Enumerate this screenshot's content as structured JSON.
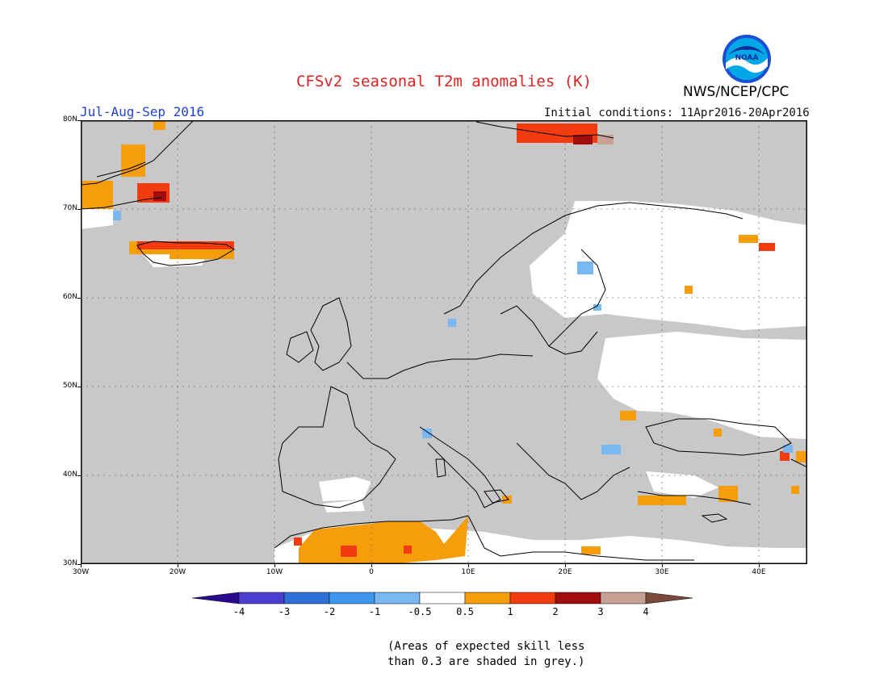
{
  "title": "CFSv2 seasonal T2m anomalies (K)",
  "season": "Jul-Aug-Sep 2016",
  "initial_conditions": "Initial conditions: 11Apr2016-20Apr2016",
  "agency": "NWS/NCEP/CPC",
  "logo_text": "NOAA",
  "colors": {
    "title": "#dd2222",
    "season": "#2244cc",
    "ocean_grey": "#c8c8c8",
    "coast": "#000000"
  },
  "map": {
    "lon_range": [
      -30,
      45
    ],
    "lat_range": [
      30,
      80
    ],
    "lat_ticks": [
      "30N",
      "40N",
      "50N",
      "60N",
      "70N",
      "80N"
    ],
    "lon_ticks": [
      "30W",
      "20W",
      "10W",
      "0",
      "10E",
      "20E",
      "30E",
      "40E"
    ]
  },
  "legend": {
    "bins": [
      {
        "color": "#2a0a8c"
      },
      {
        "color": "#4b3fd0"
      },
      {
        "color": "#2f6fd8"
      },
      {
        "color": "#3f96ee"
      },
      {
        "color": "#7ab8f2"
      },
      {
        "color": "#ffffff"
      },
      {
        "color": "#f59d0a"
      },
      {
        "color": "#f23c10"
      },
      {
        "color": "#a10d0d"
      },
      {
        "color": "#c8a195"
      },
      {
        "color": "#7a4a3c"
      }
    ],
    "labels": [
      "-4",
      "-3",
      "-2",
      "-1",
      "-0.5",
      "0.5",
      "1",
      "2",
      "3",
      "4"
    ]
  },
  "note": {
    "line1": "(Areas of expected skill less",
    "line2": "than 0.3 are shaded in grey.)"
  }
}
